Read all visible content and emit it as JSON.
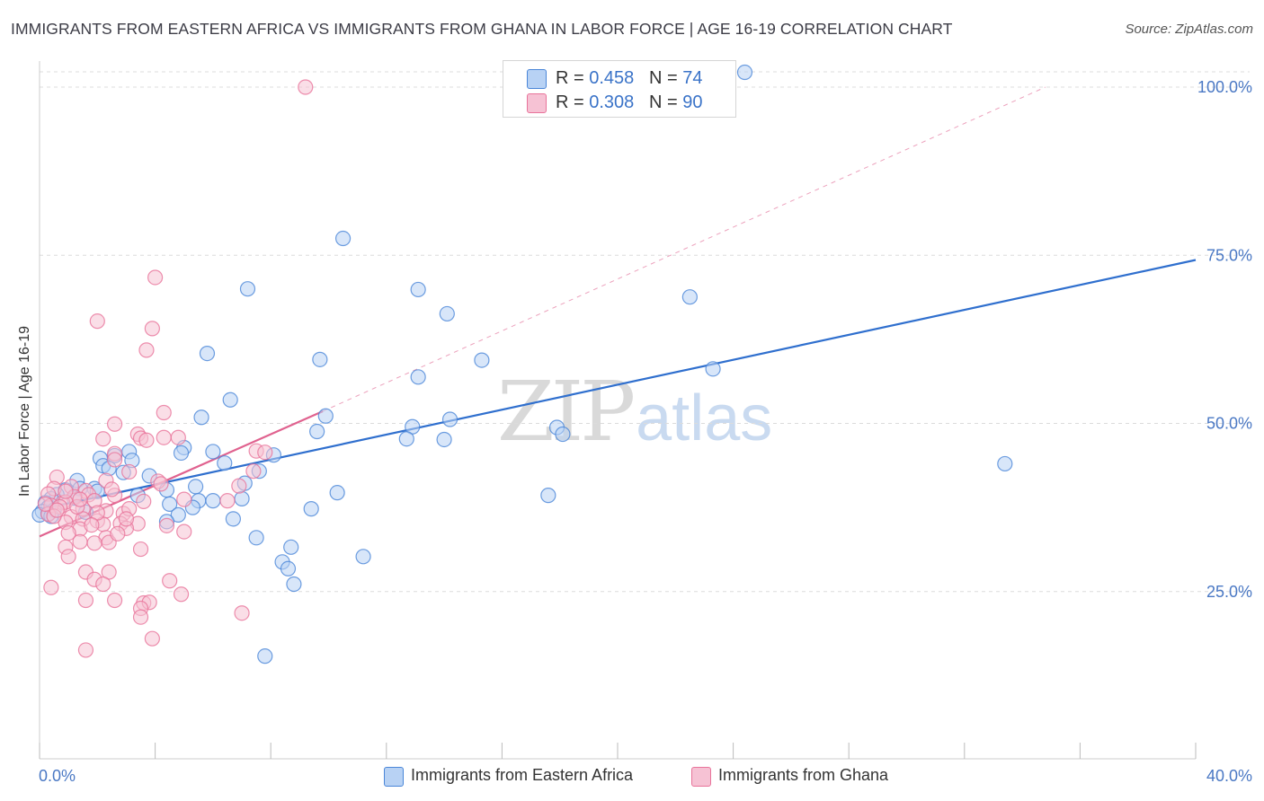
{
  "title": "IMMIGRANTS FROM EASTERN AFRICA VS IMMIGRANTS FROM GHANA IN LABOR FORCE | AGE 16-19 CORRELATION CHART",
  "source": "Source: ZipAtlas.com",
  "watermark": {
    "zip": "ZIP",
    "atlas": "atlas"
  },
  "legend": [
    {
      "r_label": "R = ",
      "r_value": "0.458",
      "n_label": "N = ",
      "n_value": "74"
    },
    {
      "r_label": "R = ",
      "r_value": "0.308",
      "n_label": "N = ",
      "n_value": "90"
    }
  ],
  "colors": {
    "blue": "#4a86d8",
    "blue_fill": "#b8d2f4",
    "blue_line": "#2f6fce",
    "pink": "#e8739a",
    "pink_fill": "#f6c2d4",
    "pink_line": "#e0628f",
    "axis_label": "#4a78c4",
    "grid": "#dcdcdc"
  },
  "chart_data": {
    "type": "scatter",
    "title": "IMMIGRANTS FROM EASTERN AFRICA VS IMMIGRANTS FROM GHANA IN LABOR FORCE | AGE 16-19 CORRELATION CHART",
    "xlabel": "",
    "ylabel": "In Labor Force | Age 16-19",
    "xlim": [
      0,
      40
    ],
    "ylim": [
      0,
      100
    ],
    "x_tick_labels": [
      "0.0%",
      "40.0%"
    ],
    "y_ticks": [
      25,
      50,
      75,
      100
    ],
    "y_tick_labels": [
      "25.0%",
      "50.0%",
      "75.0%",
      "100.0%"
    ],
    "series": [
      {
        "name": "Immigrants from Eastern Africa",
        "color": "#4a86d8",
        "R": 0.458,
        "N": 74,
        "trend": {
          "x": [
            0,
            40
          ],
          "y": [
            37.2,
            74.3
          ]
        },
        "points": [
          [
            24.4,
            102.2
          ],
          [
            10.5,
            77.5
          ],
          [
            7.2,
            70.0
          ],
          [
            13.1,
            69.9
          ],
          [
            14.1,
            66.3
          ],
          [
            22.5,
            68.8
          ],
          [
            5.8,
            60.4
          ],
          [
            9.7,
            59.5
          ],
          [
            15.3,
            59.4
          ],
          [
            23.3,
            58.1
          ],
          [
            13.1,
            56.9
          ],
          [
            6.6,
            53.5
          ],
          [
            5.6,
            50.9
          ],
          [
            9.9,
            51.1
          ],
          [
            14.2,
            50.6
          ],
          [
            12.9,
            49.5
          ],
          [
            17.9,
            49.4
          ],
          [
            18.1,
            48.4
          ],
          [
            9.6,
            48.8
          ],
          [
            12.7,
            47.7
          ],
          [
            14.0,
            47.6
          ],
          [
            33.4,
            44.0
          ],
          [
            5.0,
            46.4
          ],
          [
            3.1,
            45.8
          ],
          [
            4.9,
            45.6
          ],
          [
            6.0,
            45.8
          ],
          [
            2.1,
            44.8
          ],
          [
            2.6,
            45.2
          ],
          [
            8.1,
            45.3
          ],
          [
            3.2,
            44.5
          ],
          [
            2.2,
            43.7
          ],
          [
            2.4,
            43.3
          ],
          [
            6.4,
            44.1
          ],
          [
            7.6,
            42.9
          ],
          [
            2.9,
            42.7
          ],
          [
            3.8,
            42.2
          ],
          [
            7.1,
            41.1
          ],
          [
            1.3,
            41.5
          ],
          [
            1.4,
            40.3
          ],
          [
            1.9,
            40.3
          ],
          [
            2.0,
            39.9
          ],
          [
            0.9,
            40.1
          ],
          [
            4.4,
            40.1
          ],
          [
            5.4,
            40.6
          ],
          [
            3.4,
            39.3
          ],
          [
            10.3,
            39.7
          ],
          [
            17.6,
            39.3
          ],
          [
            0.6,
            39.4
          ],
          [
            0.4,
            38.8
          ],
          [
            1.2,
            38.9
          ],
          [
            5.5,
            38.5
          ],
          [
            4.5,
            38.0
          ],
          [
            6.0,
            38.5
          ],
          [
            7.0,
            38.8
          ],
          [
            0.2,
            38.2
          ],
          [
            0.3,
            37.5
          ],
          [
            0.5,
            37.1
          ],
          [
            0.1,
            36.9
          ],
          [
            0.0,
            36.4
          ],
          [
            0.3,
            36.6
          ],
          [
            5.3,
            37.5
          ],
          [
            1.6,
            36.8
          ],
          [
            9.4,
            37.3
          ],
          [
            4.8,
            36.4
          ],
          [
            4.4,
            35.4
          ],
          [
            6.7,
            35.8
          ],
          [
            7.5,
            33.0
          ],
          [
            8.7,
            31.6
          ],
          [
            8.4,
            29.4
          ],
          [
            8.6,
            28.4
          ],
          [
            8.8,
            26.1
          ],
          [
            11.2,
            30.2
          ],
          [
            7.8,
            15.4
          ],
          [
            0.4,
            36.2
          ]
        ]
      },
      {
        "name": "Immigrants from Ghana",
        "color": "#e8739a",
        "R": 0.308,
        "N": 90,
        "trend": {
          "x": [
            0,
            9.8
          ],
          "y": [
            33.2,
            51.8
          ]
        },
        "trend_extended": {
          "x": [
            9.8,
            34.8
          ],
          "y": [
            51.8,
            100
          ]
        },
        "points": [
          [
            9.2,
            100.0
          ],
          [
            4.0,
            71.7
          ],
          [
            2.0,
            65.2
          ],
          [
            3.9,
            64.1
          ],
          [
            3.7,
            60.9
          ],
          [
            4.3,
            51.6
          ],
          [
            2.6,
            49.9
          ],
          [
            3.4,
            48.4
          ],
          [
            3.5,
            47.8
          ],
          [
            4.3,
            47.9
          ],
          [
            4.8,
            47.9
          ],
          [
            2.2,
            47.7
          ],
          [
            3.7,
            47.5
          ],
          [
            7.5,
            45.9
          ],
          [
            2.6,
            45.5
          ],
          [
            2.6,
            44.6
          ],
          [
            7.4,
            42.9
          ],
          [
            0.6,
            42.0
          ],
          [
            3.1,
            42.8
          ],
          [
            2.3,
            41.5
          ],
          [
            4.1,
            41.4
          ],
          [
            6.9,
            40.7
          ],
          [
            1.1,
            40.6
          ],
          [
            0.5,
            40.3
          ],
          [
            1.6,
            40.0
          ],
          [
            1.7,
            39.4
          ],
          [
            0.3,
            39.5
          ],
          [
            1.2,
            39.1
          ],
          [
            2.6,
            39.3
          ],
          [
            5.0,
            38.7
          ],
          [
            0.8,
            38.2
          ],
          [
            0.9,
            38.3
          ],
          [
            1.9,
            38.5
          ],
          [
            3.6,
            38.4
          ],
          [
            0.4,
            37.8
          ],
          [
            0.7,
            37.6
          ],
          [
            1.5,
            37.3
          ],
          [
            2.3,
            37.0
          ],
          [
            2.9,
            36.6
          ],
          [
            3.1,
            37.3
          ],
          [
            0.3,
            36.5
          ],
          [
            1.1,
            36.1
          ],
          [
            1.5,
            35.8
          ],
          [
            0.9,
            35.3
          ],
          [
            2.0,
            35.5
          ],
          [
            2.2,
            35.0
          ],
          [
            2.8,
            35.1
          ],
          [
            3.4,
            35.1
          ],
          [
            4.4,
            34.8
          ],
          [
            3.0,
            34.4
          ],
          [
            1.4,
            34.3
          ],
          [
            1.0,
            33.7
          ],
          [
            2.3,
            33.0
          ],
          [
            5.0,
            33.9
          ],
          [
            1.4,
            32.4
          ],
          [
            1.9,
            32.2
          ],
          [
            0.9,
            31.6
          ],
          [
            2.4,
            32.3
          ],
          [
            3.5,
            31.3
          ],
          [
            1.0,
            30.2
          ],
          [
            1.6,
            27.9
          ],
          [
            2.4,
            27.9
          ],
          [
            1.9,
            26.8
          ],
          [
            2.2,
            26.1
          ],
          [
            4.5,
            26.6
          ],
          [
            0.4,
            25.6
          ],
          [
            1.6,
            23.7
          ],
          [
            2.6,
            23.7
          ],
          [
            3.6,
            23.3
          ],
          [
            3.8,
            23.4
          ],
          [
            4.9,
            24.6
          ],
          [
            3.5,
            22.5
          ],
          [
            7.0,
            21.8
          ],
          [
            3.5,
            21.2
          ],
          [
            3.9,
            18.0
          ],
          [
            1.6,
            16.3
          ],
          [
            7.8,
            45.7
          ],
          [
            0.2,
            38.0
          ],
          [
            0.5,
            36.2
          ],
          [
            1.3,
            37.6
          ],
          [
            2.0,
            36.7
          ],
          [
            3.0,
            35.8
          ],
          [
            0.6,
            37.1
          ],
          [
            1.8,
            34.9
          ],
          [
            2.7,
            33.6
          ],
          [
            4.2,
            41.0
          ],
          [
            0.9,
            39.9
          ],
          [
            1.4,
            38.7
          ],
          [
            2.5,
            40.2
          ],
          [
            6.5,
            38.5
          ]
        ]
      }
    ]
  },
  "bottom_legend": [
    "Immigrants from Eastern Africa",
    "Immigrants from Ghana"
  ]
}
